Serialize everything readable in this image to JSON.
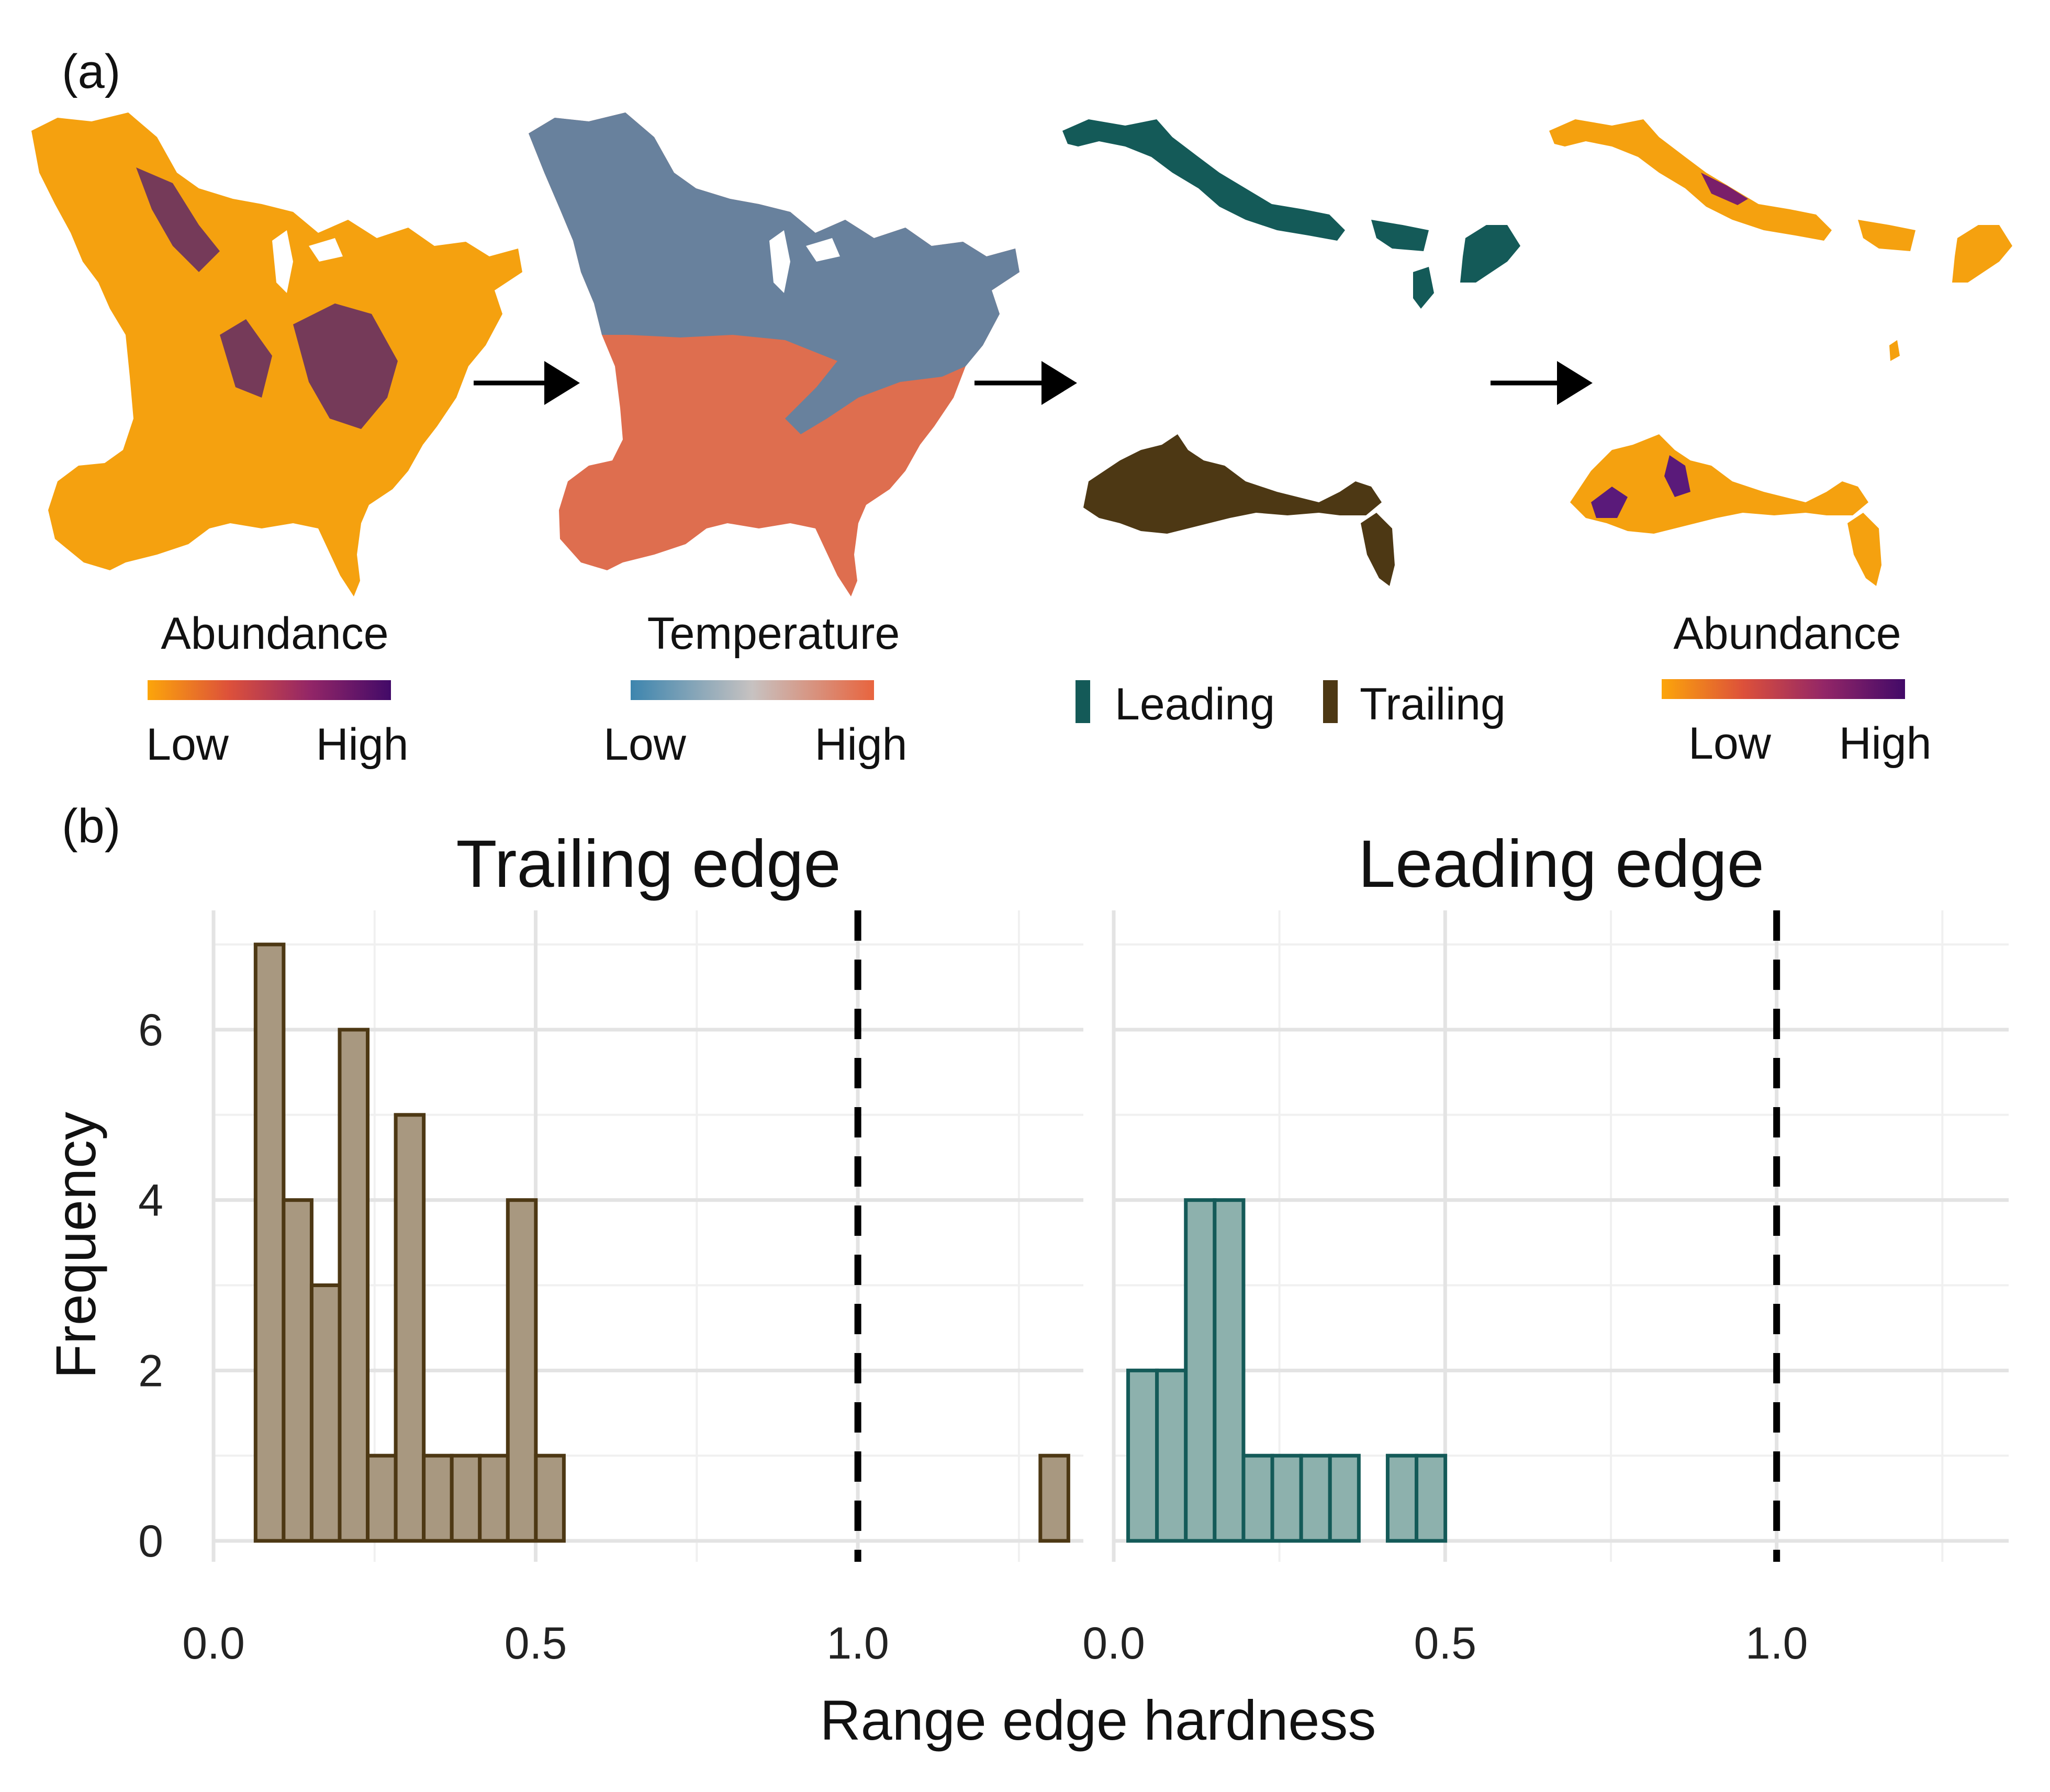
{
  "panel_a": {
    "label": "(a)",
    "maps": [
      {
        "name": "abundance-full-map",
        "fill": "#f5a10f",
        "accent": "#4a1873"
      },
      {
        "name": "temperature-map",
        "fill": "#de6e4f",
        "accent": "#4a86b0"
      },
      {
        "name": "leading-edge-map",
        "fill": "#145a58"
      },
      {
        "name": "trailing-edge-map",
        "fill": "#4d3814"
      },
      {
        "name": "abundance-leading-map",
        "fill": "#f5a10f",
        "accent": "#7a1f6a"
      },
      {
        "name": "abundance-trailing-map",
        "fill": "#f5a10f",
        "accent": "#5a1a7a"
      }
    ],
    "legends": {
      "abundance_1": {
        "title": "Abundance",
        "low": "Low",
        "high": "High",
        "colors": [
          "#fca50a",
          "#dd513a",
          "#932667",
          "#420a68"
        ]
      },
      "temperature": {
        "title": "Temperature",
        "low": "Low",
        "high": "High",
        "colors": [
          "#3d85ae",
          "#c7c2c1",
          "#e8643e"
        ]
      },
      "edges": {
        "leading": "Leading",
        "trailing": "Trailing",
        "leading_color": "#145a58",
        "trailing_color": "#4d3814"
      },
      "abundance_2": {
        "title": "Abundance",
        "low": "Low",
        "high": "High",
        "colors": [
          "#fca50a",
          "#dd513a",
          "#932667",
          "#420a68"
        ]
      }
    }
  },
  "panel_b": {
    "label": "(b)",
    "xlabel": "Range edge hardness",
    "ylabel": "Frequency"
  },
  "chart_data": [
    {
      "type": "bar",
      "title": "Trailing edge",
      "xlabel": "Range edge hardness",
      "ylabel": "Frequency",
      "bin_width": 0.0435,
      "bin_centers": [
        0.0435,
        0.087,
        0.1305,
        0.174,
        0.2175,
        0.261,
        0.3045,
        0.348,
        0.3915,
        0.435,
        0.4785,
        0.522,
        0.5655,
        0.609,
        0.6525,
        0.696,
        0.7395,
        0.783,
        0.8265,
        0.87,
        0.9135,
        0.957,
        1.0005,
        1.044,
        1.0875,
        1.131,
        1.1745,
        1.218,
        1.2615,
        1.305
      ],
      "values": [
        0,
        7,
        4,
        3,
        6,
        1,
        5,
        1,
        1,
        1,
        4,
        1,
        0,
        0,
        0,
        0,
        0,
        0,
        0,
        0,
        0,
        0,
        0,
        0,
        0,
        0,
        0,
        0,
        0,
        1
      ],
      "reference_line_x": 1.0,
      "xlim": [
        0,
        1.35
      ],
      "ylim": [
        0,
        7
      ],
      "xticks": [
        "0.0",
        "0.5",
        "1.0"
      ],
      "yticks": [
        "0",
        "2",
        "4",
        "6"
      ],
      "color": "#4d3814",
      "fill": "#a89880"
    },
    {
      "type": "bar",
      "title": "Leading edge",
      "xlabel": "Range edge hardness",
      "ylabel": "Frequency",
      "bin_width": 0.0435,
      "bin_centers": [
        0.0435,
        0.087,
        0.1305,
        0.174,
        0.2175,
        0.261,
        0.3045,
        0.348,
        0.3915,
        0.435,
        0.4785,
        0.522,
        0.5655,
        0.609,
        0.6525,
        0.696,
        0.7395,
        0.783,
        0.8265,
        0.87,
        0.9135,
        0.957,
        1.0005,
        1.044,
        1.0875,
        1.131,
        1.1745,
        1.218,
        1.2615,
        1.305
      ],
      "values": [
        2,
        2,
        4,
        4,
        1,
        1,
        1,
        1,
        0,
        1,
        1,
        0,
        0,
        0,
        0,
        0,
        0,
        0,
        0,
        0,
        0,
        0,
        0,
        0,
        0,
        0,
        0,
        0,
        0,
        0
      ],
      "reference_line_x": 1.0,
      "xlim": [
        0,
        1.35
      ],
      "ylim": [
        0,
        7
      ],
      "xticks": [
        "0.0",
        "0.5",
        "1.0"
      ],
      "yticks": [],
      "color": "#145a58",
      "fill": "#8db1ad"
    }
  ]
}
